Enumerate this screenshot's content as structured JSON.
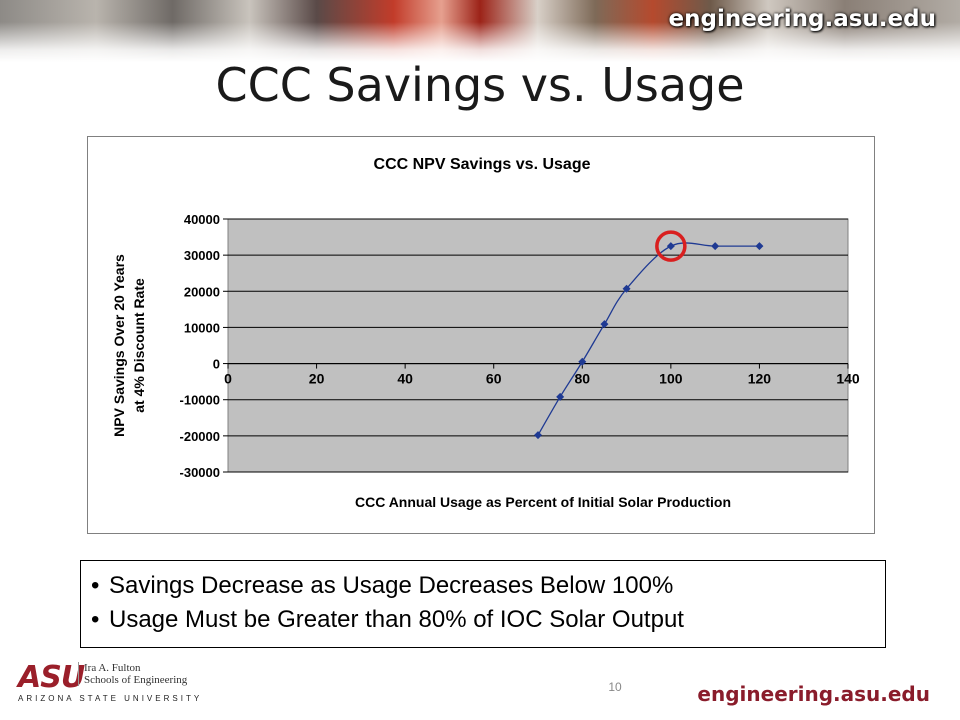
{
  "header": {
    "url": "engineering.asu.edu"
  },
  "slide": {
    "title": "CCC Savings vs. Usage",
    "page_number": "10"
  },
  "bullets": [
    "Savings Decrease as Usage Decreases Below 100%",
    "Usage Must be Greater than 80% of IOC Solar Output"
  ],
  "footer": {
    "logo_mark": "ASU",
    "school_line1": "Ira A. Fulton",
    "school_line2": "Schools of Engineering",
    "university": "ARIZONA STATE UNIVERSITY",
    "url": "engineering.asu.edu"
  },
  "colors": {
    "marker": "#1f3a93",
    "highlight": "#d91f1f",
    "plot_bg": "#c0c0c0",
    "brand": "#8a1c2b"
  },
  "chart_data": {
    "type": "scatter",
    "title": "CCC NPV Savings vs. Usage",
    "xlabel": "CCC Annual Usage as Percent of Initial Solar Production",
    "ylabel": [
      "NPV Savings Over 20 Years",
      "at 4% Discount Rate"
    ],
    "xlim": [
      0,
      140
    ],
    "ylim": [
      -30000,
      40000
    ],
    "xticks": [
      0,
      20,
      40,
      60,
      80,
      100,
      120,
      140
    ],
    "yticks": [
      40000,
      30000,
      20000,
      10000,
      0,
      -10000,
      -20000,
      -30000
    ],
    "grid": "horizontal",
    "smooth_line": true,
    "series": [
      {
        "x": [
          70,
          75,
          80,
          85,
          90,
          100,
          110,
          120
        ],
        "y": [
          -19800,
          -9200,
          500,
          10900,
          20700,
          32500,
          32500,
          32500
        ]
      }
    ],
    "highlight_point": {
      "x": 100,
      "y": 32500
    }
  }
}
